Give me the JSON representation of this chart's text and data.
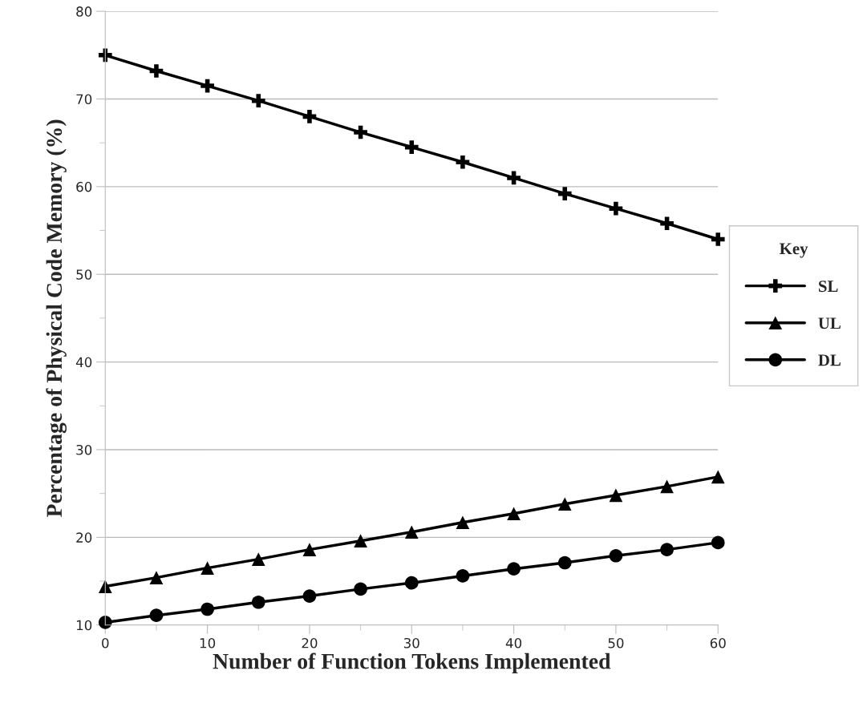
{
  "chart_data": {
    "type": "line",
    "xlabel": "Number of Function Tokens Implemented",
    "ylabel": "Percentage of Physical Code Memory (%)",
    "legend_title": "Key",
    "x": [
      0,
      5,
      10,
      15,
      20,
      25,
      30,
      35,
      40,
      45,
      50,
      55,
      60
    ],
    "series": [
      {
        "name": "SL",
        "color": "#000000",
        "marker": "cross",
        "values": [
          75.0,
          73.2,
          71.5,
          69.8,
          68.0,
          66.2,
          64.5,
          62.8,
          61.0,
          59.2,
          57.5,
          55.8,
          54.0
        ]
      },
      {
        "name": "UL",
        "color": "#000000",
        "marker": "triangle",
        "values": [
          14.4,
          15.4,
          16.5,
          17.5,
          18.6,
          19.6,
          20.6,
          21.7,
          22.7,
          23.8,
          24.8,
          25.8,
          26.9
        ]
      },
      {
        "name": "DL",
        "color": "#000000",
        "marker": "circle",
        "values": [
          10.3,
          11.1,
          11.8,
          12.6,
          13.3,
          14.1,
          14.8,
          15.6,
          16.4,
          17.1,
          17.9,
          18.6,
          19.4
        ]
      }
    ],
    "xlim": [
      0,
      60
    ],
    "xticks": [
      0,
      {
        "value": 5,
        "label": null
      },
      10,
      {
        "value": 15,
        "label": null
      },
      20,
      {
        "value": 25,
        "label": null
      },
      30,
      {
        "value": 35,
        "label": null
      },
      40,
      {
        "value": 45,
        "label": null
      },
      50,
      {
        "value": 55,
        "label": null
      },
      60
    ],
    "ylim": [
      10,
      80
    ],
    "yticks": [
      10,
      {
        "value": 15,
        "label": null
      },
      20,
      {
        "value": 25,
        "label": null
      },
      30,
      {
        "value": 35,
        "label": null
      },
      40,
      {
        "value": 45,
        "label": null
      },
      50,
      {
        "value": 55,
        "label": null
      },
      60,
      {
        "value": 65,
        "label": null
      },
      70,
      {
        "value": 75,
        "label": null
      },
      80
    ],
    "grid": "y",
    "legend": "right",
    "line_style": "solid"
  }
}
